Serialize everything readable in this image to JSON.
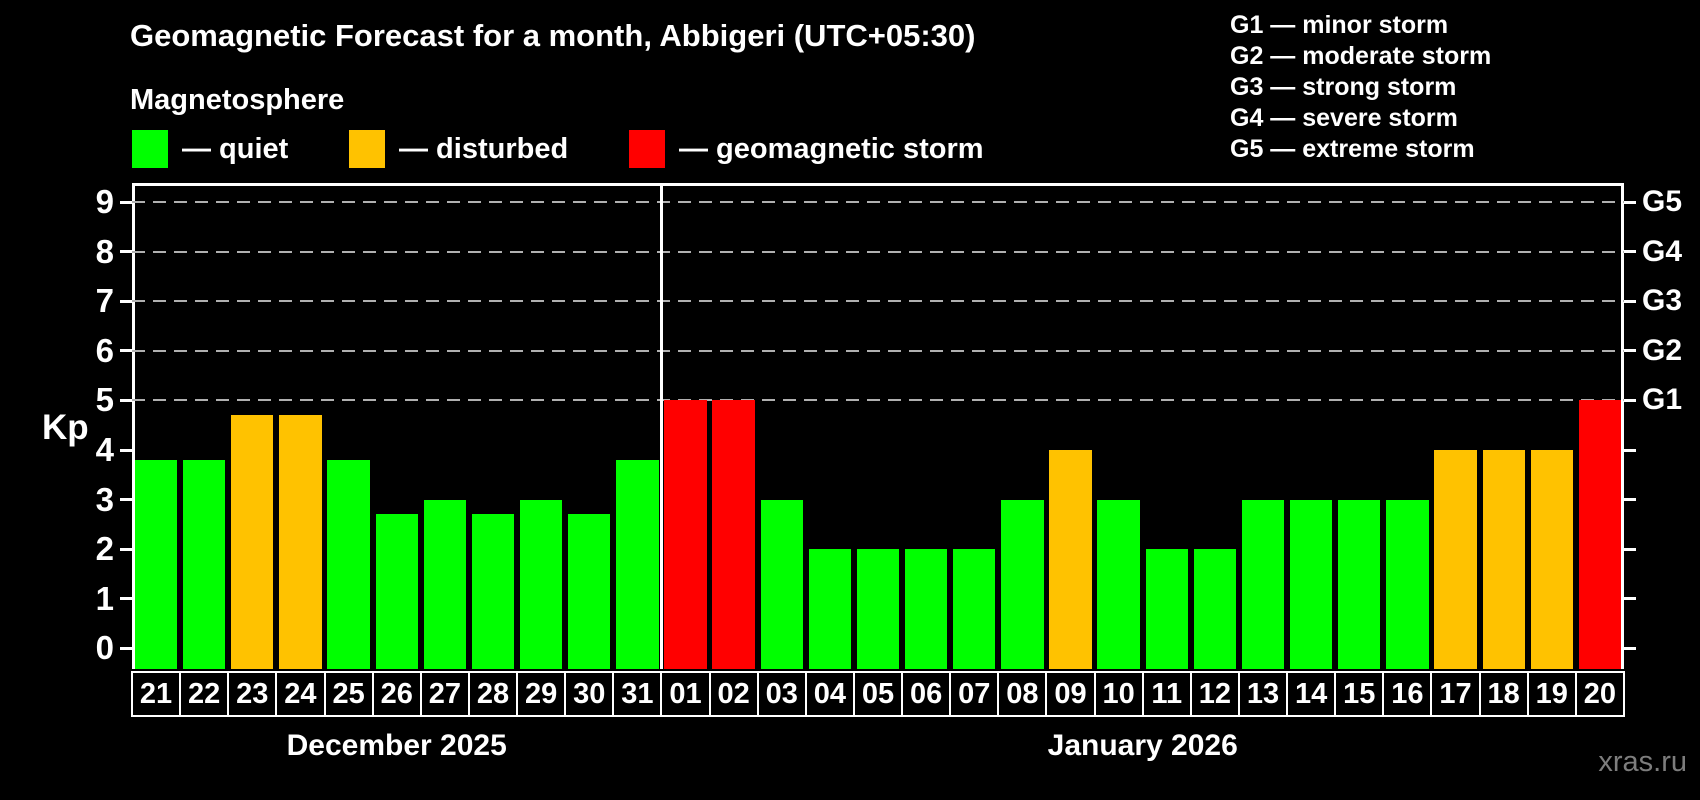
{
  "title": "Geomagnetic Forecast for a month, Abbigeri (UTC+05:30)",
  "subtitle": "Magnetosphere",
  "watermark": "xras.ru",
  "axis": {
    "kp_label": "Kp"
  },
  "legend": [
    {
      "status": "quiet",
      "label": "— quiet",
      "color": "#00ff00"
    },
    {
      "status": "disturbed",
      "label": "— disturbed",
      "color": "#ffc200"
    },
    {
      "status": "storm",
      "label": "— geomagnetic storm",
      "color": "#ff0000"
    }
  ],
  "g_scale": [
    {
      "code": "G1",
      "kp": 5,
      "text": "G1 — minor storm"
    },
    {
      "code": "G2",
      "kp": 6,
      "text": "G2 — moderate storm"
    },
    {
      "code": "G3",
      "kp": 7,
      "text": "G3 — strong storm"
    },
    {
      "code": "G4",
      "kp": 8,
      "text": "G4 — severe storm"
    },
    {
      "code": "G5",
      "kp": 9,
      "text": "G5 — extreme storm"
    }
  ],
  "chart_data": {
    "type": "bar",
    "title": "Geomagnetic Forecast for a month, Abbigeri (UTC+05:30)",
    "ylabel": "Kp",
    "ylim": [
      -0.4,
      9.4
    ],
    "y_ticks": [
      0,
      1,
      2,
      3,
      4,
      5,
      6,
      7,
      8,
      9
    ],
    "gridlines_at_kp": [
      5,
      6,
      7,
      8,
      9
    ],
    "grid_style": "dashed horizontal, only at storm levels G1–G5",
    "legend_position": "top-left",
    "months": [
      {
        "label": "December 2025",
        "days": [
          {
            "day": "21",
            "kp": 3.8,
            "status": "quiet"
          },
          {
            "day": "22",
            "kp": 3.8,
            "status": "quiet"
          },
          {
            "day": "23",
            "kp": 4.7,
            "status": "disturbed"
          },
          {
            "day": "24",
            "kp": 4.7,
            "status": "disturbed"
          },
          {
            "day": "25",
            "kp": 3.8,
            "status": "quiet"
          },
          {
            "day": "26",
            "kp": 2.7,
            "status": "quiet"
          },
          {
            "day": "27",
            "kp": 3.0,
            "status": "quiet"
          },
          {
            "day": "28",
            "kp": 2.7,
            "status": "quiet"
          },
          {
            "day": "29",
            "kp": 3.0,
            "status": "quiet"
          },
          {
            "day": "30",
            "kp": 2.7,
            "status": "quiet"
          },
          {
            "day": "31",
            "kp": 3.8,
            "status": "quiet"
          }
        ]
      },
      {
        "label": "January 2026",
        "days": [
          {
            "day": "01",
            "kp": 5.0,
            "status": "storm"
          },
          {
            "day": "02",
            "kp": 5.0,
            "status": "storm"
          },
          {
            "day": "03",
            "kp": 3.0,
            "status": "quiet"
          },
          {
            "day": "04",
            "kp": 2.0,
            "status": "quiet"
          },
          {
            "day": "05",
            "kp": 2.0,
            "status": "quiet"
          },
          {
            "day": "06",
            "kp": 2.0,
            "status": "quiet"
          },
          {
            "day": "07",
            "kp": 2.0,
            "status": "quiet"
          },
          {
            "day": "08",
            "kp": 3.0,
            "status": "quiet"
          },
          {
            "day": "09",
            "kp": 4.0,
            "status": "disturbed"
          },
          {
            "day": "10",
            "kp": 3.0,
            "status": "quiet"
          },
          {
            "day": "11",
            "kp": 2.0,
            "status": "quiet"
          },
          {
            "day": "12",
            "kp": 2.0,
            "status": "quiet"
          },
          {
            "day": "13",
            "kp": 3.0,
            "status": "quiet"
          },
          {
            "day": "14",
            "kp": 3.0,
            "status": "quiet"
          },
          {
            "day": "15",
            "kp": 3.0,
            "status": "quiet"
          },
          {
            "day": "16",
            "kp": 3.0,
            "status": "quiet"
          },
          {
            "day": "17",
            "kp": 4.0,
            "status": "disturbed"
          },
          {
            "day": "18",
            "kp": 4.0,
            "status": "disturbed"
          },
          {
            "day": "19",
            "kp": 4.0,
            "status": "disturbed"
          },
          {
            "day": "20",
            "kp": 5.0,
            "status": "storm"
          }
        ]
      }
    ]
  }
}
